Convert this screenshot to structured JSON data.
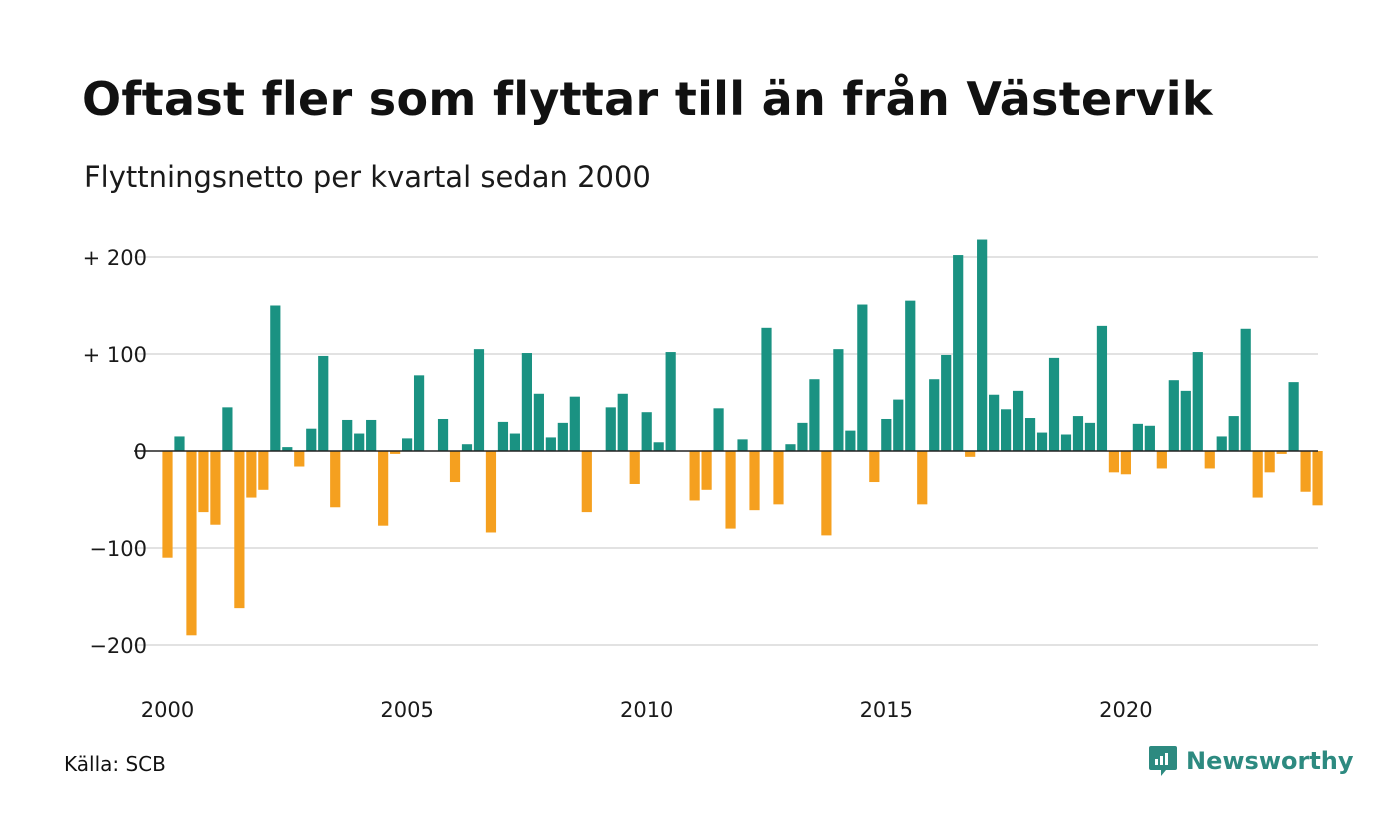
{
  "title": "Oftast fler som flyttar till än från Västervik",
  "subtitle": "Flyttningsnetto per kvartal sedan 2000",
  "source": "Källa: SCB",
  "brand": "Newsworthy",
  "colors": {
    "positive": "#1a9282",
    "negative": "#f5a01f",
    "grid": "#e2e2e2",
    "zero": "#222222",
    "brand": "#2d8a80"
  },
  "chart_data": {
    "type": "bar",
    "title": "Oftast fler som flyttar till än från Västervik",
    "subtitle": "Flyttningsnetto per kvartal sedan 2000",
    "xlabel": "",
    "ylabel": "",
    "x_start": 2000,
    "periods_per_year": 4,
    "xticks": [
      "2000",
      "2005",
      "2010",
      "2015",
      "2020"
    ],
    "yticks": [
      200,
      100,
      0,
      -100,
      -200
    ],
    "ytick_labels": [
      "+ 200",
      "+ 100",
      "0",
      "−100",
      "−200"
    ],
    "ylim": [
      -200,
      200
    ],
    "grid": true,
    "legend": "none",
    "values": [
      -110,
      15,
      -190,
      -63,
      -76,
      45,
      -162,
      -48,
      -40,
      150,
      4,
      -16,
      23,
      98,
      -58,
      32,
      18,
      32,
      -77,
      -3,
      13,
      78,
      0,
      33,
      -32,
      7,
      105,
      -84,
      30,
      18,
      101,
      59,
      14,
      29,
      56,
      -63,
      0,
      45,
      59,
      -34,
      40,
      9,
      102,
      0,
      -51,
      -40,
      44,
      -80,
      12,
      -61,
      127,
      -55,
      7,
      29,
      74,
      -87,
      105,
      21,
      151,
      -32,
      33,
      53,
      155,
      -55,
      74,
      99,
      202,
      -6,
      218,
      58,
      43,
      62,
      34,
      19,
      96,
      17,
      36,
      29,
      129,
      -22,
      -24,
      28,
      26,
      -18,
      73,
      62,
      102,
      -18,
      15,
      36,
      126,
      -48,
      -22,
      -3,
      71,
      -42,
      -56
    ]
  }
}
